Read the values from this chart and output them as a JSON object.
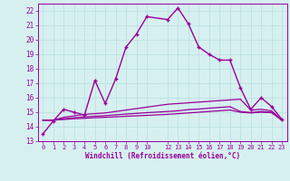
{
  "xlabel": "Windchill (Refroidissement éolien,°C)",
  "background_color": "#d6f0f0",
  "grid_color": "#b8dede",
  "line_color": "#990099",
  "xlim": [
    -0.5,
    23.5
  ],
  "ylim": [
    13,
    22.5
  ],
  "yticks": [
    13,
    14,
    15,
    16,
    17,
    18,
    19,
    20,
    21,
    22
  ],
  "xtick_positions": [
    0,
    1,
    2,
    3,
    4,
    5,
    6,
    7,
    8,
    9,
    10,
    12,
    13,
    14,
    15,
    16,
    17,
    18,
    19,
    20,
    21,
    22,
    23
  ],
  "xtick_labels": [
    "0",
    "1",
    "2",
    "3",
    "4",
    "5",
    "6",
    "7",
    "8",
    "9",
    "10",
    "12",
    "13",
    "14",
    "15",
    "16",
    "17",
    "18",
    "19",
    "20",
    "21",
    "22",
    "23"
  ],
  "series": [
    {
      "x": [
        0,
        1,
        2,
        3,
        4,
        5,
        6,
        7,
        8,
        9,
        10,
        12,
        13,
        14,
        15,
        16,
        17,
        18,
        19,
        20,
        21,
        22,
        23
      ],
      "y": [
        13.5,
        14.4,
        15.2,
        15.0,
        14.8,
        17.2,
        15.6,
        17.3,
        19.5,
        20.4,
        21.6,
        21.4,
        22.2,
        21.1,
        19.5,
        19.0,
        18.6,
        18.6,
        16.7,
        15.2,
        16.0,
        15.4,
        14.5
      ],
      "marker": "+",
      "linestyle": "-",
      "linewidth": 1.0,
      "markersize": 3
    },
    {
      "x": [
        0,
        1,
        2,
        3,
        4,
        5,
        6,
        7,
        8,
        9,
        10,
        12,
        13,
        14,
        15,
        16,
        17,
        18,
        19,
        20,
        21,
        22,
        23
      ],
      "y": [
        14.45,
        14.45,
        14.65,
        14.75,
        14.85,
        14.9,
        14.95,
        15.05,
        15.15,
        15.25,
        15.35,
        15.55,
        15.6,
        15.65,
        15.7,
        15.75,
        15.8,
        15.85,
        15.9,
        15.15,
        15.2,
        15.1,
        14.45
      ],
      "marker": "None",
      "linestyle": "-",
      "linewidth": 0.9,
      "markersize": 0
    },
    {
      "x": [
        0,
        1,
        2,
        3,
        4,
        5,
        6,
        7,
        8,
        9,
        10,
        12,
        13,
        14,
        15,
        16,
        17,
        18,
        19,
        20,
        21,
        22,
        23
      ],
      "y": [
        14.45,
        14.45,
        14.55,
        14.62,
        14.68,
        14.72,
        14.76,
        14.82,
        14.87,
        14.92,
        14.97,
        15.05,
        15.1,
        15.18,
        15.22,
        15.28,
        15.33,
        15.38,
        15.05,
        14.98,
        15.05,
        15.0,
        14.45
      ],
      "marker": "None",
      "linestyle": "-",
      "linewidth": 0.9,
      "markersize": 0
    },
    {
      "x": [
        0,
        1,
        2,
        3,
        4,
        5,
        6,
        7,
        8,
        9,
        10,
        12,
        13,
        14,
        15,
        16,
        17,
        18,
        19,
        20,
        21,
        22,
        23
      ],
      "y": [
        14.45,
        14.45,
        14.5,
        14.55,
        14.58,
        14.62,
        14.65,
        14.68,
        14.72,
        14.75,
        14.78,
        14.85,
        14.9,
        14.95,
        15.0,
        15.05,
        15.1,
        15.15,
        15.0,
        14.95,
        15.0,
        14.97,
        14.45
      ],
      "marker": "None",
      "linestyle": "-",
      "linewidth": 0.9,
      "markersize": 0
    }
  ]
}
